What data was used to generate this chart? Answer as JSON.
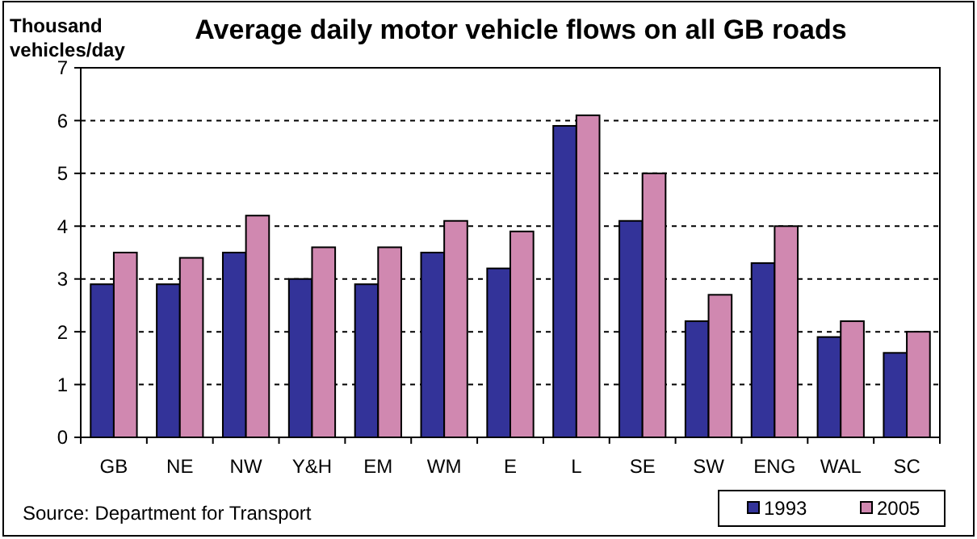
{
  "chart_data": {
    "type": "bar",
    "title": "Average daily motor vehicle flows on all GB roads",
    "ylabel": "Thousand vehicles/day",
    "categories": [
      "GB",
      "NE",
      "NW",
      "Y&H",
      "EM",
      "WM",
      "E",
      "L",
      "SE",
      "SW",
      "ENG",
      "WAL",
      "SC"
    ],
    "series": [
      {
        "name": "1993",
        "color": "#333399",
        "values": [
          2.9,
          2.9,
          3.5,
          3.0,
          2.9,
          3.5,
          3.2,
          5.9,
          4.1,
          2.2,
          3.3,
          1.9,
          1.6
        ]
      },
      {
        "name": "2005",
        "color": "#d088b0",
        "values": [
          3.5,
          3.4,
          4.2,
          3.6,
          3.6,
          4.1,
          3.9,
          6.1,
          5.0,
          2.7,
          4.0,
          2.2,
          2.0
        ]
      }
    ],
    "ylim": [
      0,
      7
    ],
    "yticks": [
      0,
      1,
      2,
      3,
      4,
      5,
      6,
      7
    ],
    "grid": "y",
    "legend": "bottom right",
    "annotations": [
      "Source: Department for Transport"
    ]
  }
}
